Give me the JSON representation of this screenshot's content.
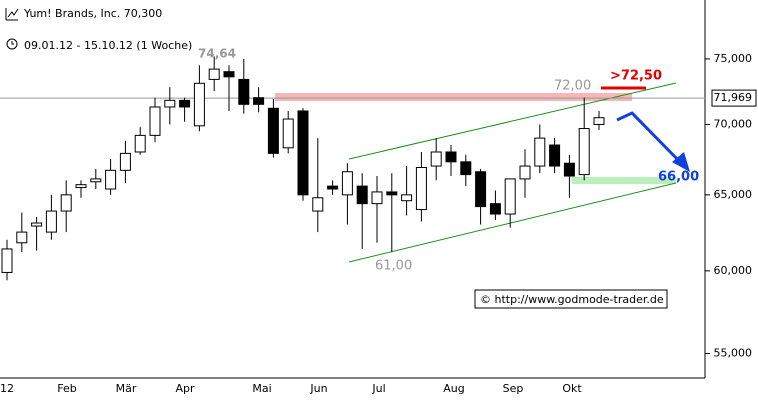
{
  "chart_data": {
    "type": "candlestick",
    "title": "Yum! Brands, Inc. 70,300",
    "subtitle": "09.01.12 - 15.10.12 (1 Woche)",
    "log_scale": true,
    "ylim": [
      53.6,
      79.8
    ],
    "yticks": [
      {
        "value": 55,
        "label": "55,000"
      },
      {
        "value": 60,
        "label": "60,000"
      },
      {
        "value": 65,
        "label": "65,000"
      },
      {
        "value": 70,
        "label": "70,000"
      },
      {
        "value": 75,
        "label": "75,000"
      }
    ],
    "last_price": {
      "value": 71.969,
      "label": "71,969"
    },
    "x_labels": [
      "12",
      "Feb",
      "Mär",
      "Apr",
      "Mai",
      "Jun",
      "Jul",
      "Aug",
      "Sep",
      "Okt"
    ],
    "annotations": [
      "74,64",
      "72,00",
      "61,00",
      ">72,50",
      "66,00"
    ],
    "copyright": "© http://www.godmode-trader.de",
    "categories": [
      null,
      null,
      null,
      null,
      null,
      null,
      null,
      null,
      null,
      null,
      null,
      null,
      null,
      null,
      null,
      null,
      null,
      null,
      null,
      null,
      null,
      null,
      null,
      null,
      null,
      null,
      null,
      null,
      null,
      null,
      null,
      null,
      null,
      null,
      null,
      null,
      null,
      null,
      null,
      null,
      null
    ],
    "open": [
      59.9,
      61.8,
      62.9,
      62.5,
      63.9,
      65.5,
      65.9,
      65.4,
      66.7,
      68.0,
      69.2,
      71.3,
      71.8,
      69.9,
      73.4,
      74.0,
      73.4,
      72.0,
      71.2,
      68.3,
      71.0,
      63.9,
      65.6,
      65.0,
      65.6,
      64.4,
      65.2,
      64.6,
      64.0,
      67.0,
      68.0,
      67.3,
      66.6,
      64.4,
      63.7,
      66.1,
      67.0,
      68.5,
      67.2,
      66.4,
      70.0
    ],
    "high": [
      62.0,
      63.8,
      63.5,
      65.0,
      66.0,
      66.0,
      66.8,
      67.5,
      68.8,
      69.8,
      72.0,
      72.8,
      72.0,
      74.5,
      75.2,
      74.5,
      75.0,
      72.8,
      71.9,
      71.0,
      71.2,
      69.0,
      66.0,
      67.2,
      66.5,
      66.3,
      66.5,
      67.0,
      68.0,
      69.0,
      68.5,
      67.8,
      66.8,
      65.3,
      66.1,
      68.2,
      70.0,
      69.0,
      67.8,
      72.0,
      71.0
    ],
    "low": [
      59.4,
      61.2,
      61.3,
      62.0,
      62.5,
      64.8,
      65.4,
      65.0,
      65.8,
      67.8,
      68.7,
      70.0,
      70.2,
      69.5,
      72.5,
      71.0,
      70.8,
      70.9,
      67.6,
      67.9,
      64.6,
      62.5,
      65.0,
      63.0,
      61.4,
      61.8,
      61.2,
      63.6,
      63.2,
      66.0,
      66.3,
      65.6,
      63.0,
      63.3,
      62.8,
      64.8,
      66.5,
      66.5,
      64.8,
      66.0,
      69.6
    ],
    "close": [
      61.4,
      62.5,
      63.1,
      63.9,
      65.0,
      65.7,
      66.1,
      66.7,
      67.9,
      69.2,
      71.3,
      71.8,
      71.3,
      73.1,
      74.2,
      73.6,
      71.5,
      71.5,
      67.9,
      70.4,
      65.0,
      64.8,
      65.4,
      66.6,
      64.4,
      65.2,
      65.0,
      65.0,
      66.9,
      68.0,
      67.3,
      66.4,
      64.2,
      63.7,
      66.1,
      67.0,
      69.0,
      67.0,
      66.3,
      69.7,
      70.5
    ]
  }
}
